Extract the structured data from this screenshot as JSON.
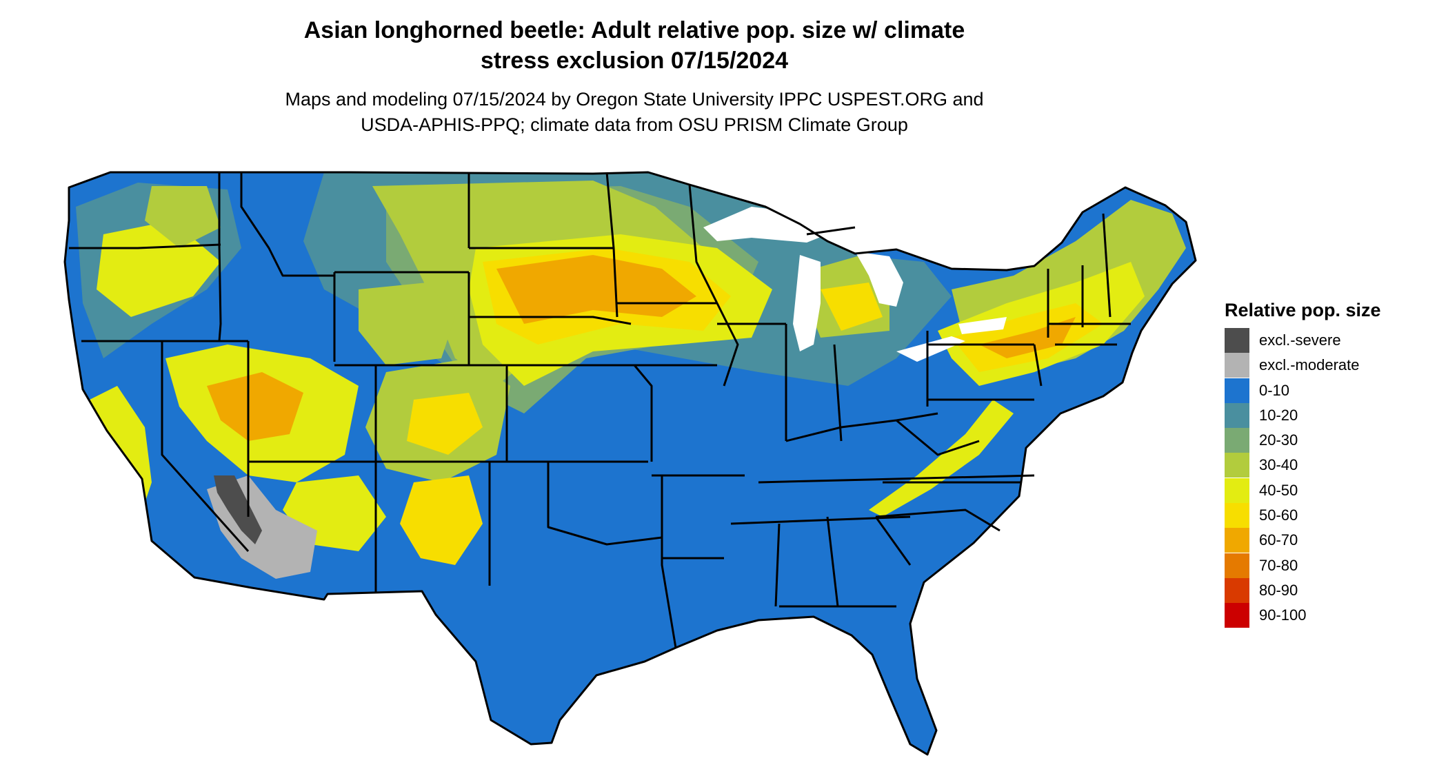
{
  "title": {
    "line1": "Asian longhorned beetle: Adult relative pop. size w/ climate",
    "line2": "stress exclusion 07/15/2024"
  },
  "subtitle": {
    "line1": "Maps and modeling 07/15/2024 by Oregon State University IPPC USPEST.ORG and",
    "line2": "USDA-APHIS-PPQ; climate data from OSU PRISM Climate Group"
  },
  "legend": {
    "title": "Relative pop. size",
    "items": [
      {
        "label": "excl.-severe",
        "color": "#4d4d4d"
      },
      {
        "label": "excl.-moderate",
        "color": "#b3b3b3"
      },
      {
        "label": "0-10",
        "color": "#1d74cf"
      },
      {
        "label": "10-20",
        "color": "#4a8f9f"
      },
      {
        "label": "20-30",
        "color": "#7aaa73"
      },
      {
        "label": "30-40",
        "color": "#b2cc3d"
      },
      {
        "label": "40-50",
        "color": "#e3ec12"
      },
      {
        "label": "50-60",
        "color": "#f7de00"
      },
      {
        "label": "60-70",
        "color": "#f0a800"
      },
      {
        "label": "70-80",
        "color": "#e57a00"
      },
      {
        "label": "80-90",
        "color": "#d93a00"
      },
      {
        "label": "90-100",
        "color": "#cc0000"
      }
    ]
  }
}
